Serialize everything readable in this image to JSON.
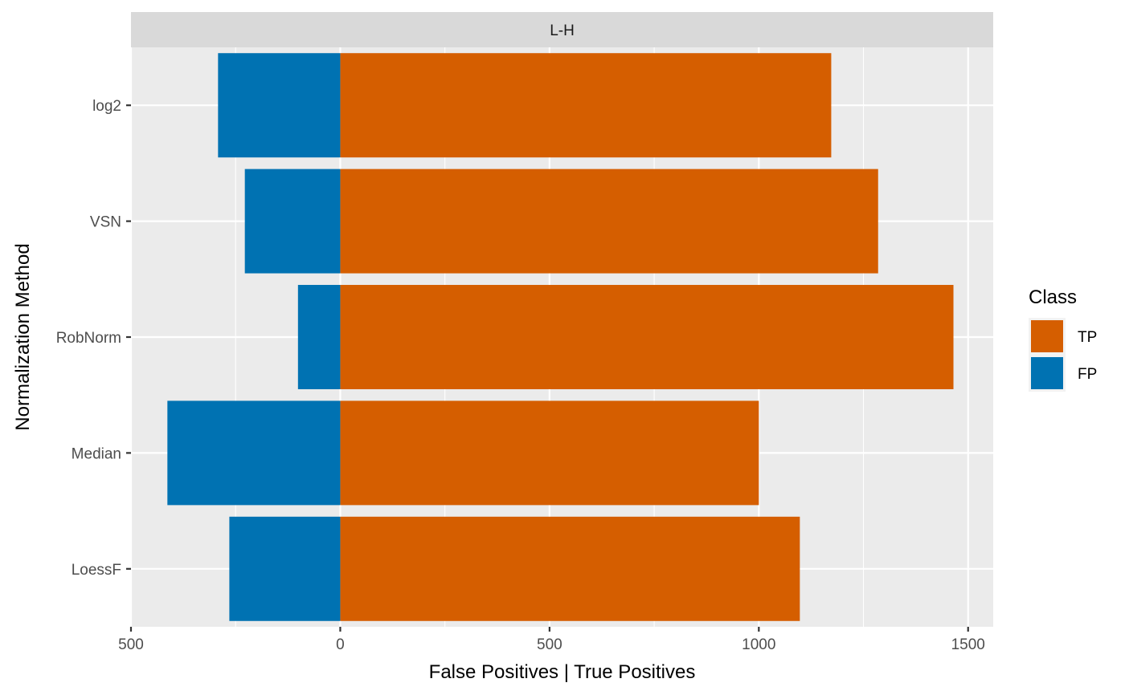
{
  "chart_data": {
    "type": "bar",
    "orientation": "horizontal",
    "facet_label": "L-H",
    "categories": [
      "log2",
      "VSN",
      "RobNorm",
      "Median",
      "LoessF"
    ],
    "series": [
      {
        "name": "TP",
        "color": "#D55E00",
        "values": [
          1173,
          1285,
          1465,
          1000,
          1098
        ]
      },
      {
        "name": "FP",
        "color": "#0072B2",
        "values": [
          -292,
          -228,
          -101,
          -413,
          -265
        ]
      }
    ],
    "xlabel": "False Positives | True Positives",
    "ylabel": "Normalization Method",
    "xlim": [
      -500,
      1560
    ],
    "x_ticks": [
      -500,
      0,
      500,
      1000,
      1500
    ],
    "x_tick_labels": [
      "500",
      "0",
      "500",
      "1000",
      "1500"
    ],
    "legend": {
      "title": "Class",
      "position": "right",
      "entries": [
        "TP",
        "FP"
      ]
    },
    "grid": true,
    "panel_background": "#EBEBEB",
    "strip_background": "#D9D9D9"
  }
}
